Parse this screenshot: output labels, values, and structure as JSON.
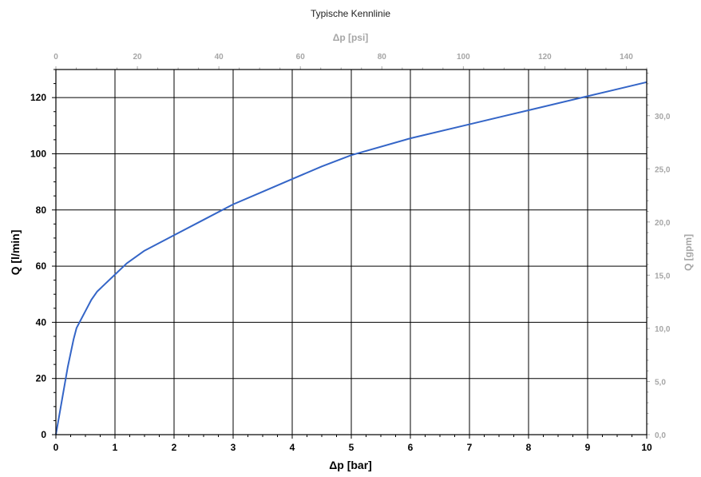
{
  "chart_data": {
    "type": "line",
    "title": "Typische Kennlinie",
    "xlabel": "Δp [bar]",
    "ylabel": "Q [l/min]",
    "x2label": "Δp [psi]",
    "y2label": "Q [gpm]",
    "xlim": [
      0,
      10
    ],
    "ylim": [
      0,
      130
    ],
    "x2lim": [
      0,
      145
    ],
    "y2lim": [
      0,
      34.34
    ],
    "grid": true,
    "colors": {
      "line": "#3465c7",
      "grid": "#000000",
      "secondary_axis": "#a6a6a6"
    },
    "x_ticks": [
      "0",
      "1",
      "2",
      "3",
      "4",
      "5",
      "6",
      "7",
      "8",
      "9",
      "10"
    ],
    "y_ticks": [
      "0",
      "20",
      "40",
      "60",
      "80",
      "100",
      "120"
    ],
    "x2_ticks": [
      "0",
      "20",
      "40",
      "60",
      "80",
      "100",
      "120",
      "140"
    ],
    "y2_ticks": [
      "0,0",
      "5,0",
      "10,0",
      "15,0",
      "20,0",
      "25,0",
      "30,0"
    ],
    "series": [
      {
        "x": [
          0,
          0.1,
          0.2,
          0.3,
          0.35,
          0.4,
          0.5,
          0.6,
          0.7,
          0.8,
          1.0,
          1.2,
          1.5,
          2.0,
          2.5,
          3.0,
          3.5,
          4.0,
          4.5,
          5.0,
          6.0,
          7.0,
          8.0,
          9.0,
          10.0
        ],
        "y": [
          0,
          12,
          24,
          34,
          38,
          40,
          44,
          48,
          51,
          53,
          57,
          61,
          65.5,
          71,
          76.5,
          82,
          86.5,
          91,
          95.5,
          99.5,
          105.5,
          110.5,
          115.5,
          120.5,
          125.5
        ]
      }
    ]
  }
}
